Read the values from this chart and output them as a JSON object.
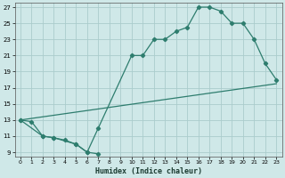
{
  "xlabel": "Humidex (Indice chaleur)",
  "bg_color": "#cfe8e8",
  "grid_color": "#aacccc",
  "line_color": "#2e7d6e",
  "xlim": [
    -0.5,
    23.5
  ],
  "ylim": [
    8.5,
    27.5
  ],
  "xticks": [
    0,
    1,
    2,
    3,
    4,
    5,
    6,
    7,
    8,
    9,
    10,
    11,
    12,
    13,
    14,
    15,
    16,
    17,
    18,
    19,
    20,
    21,
    22,
    23
  ],
  "yticks": [
    9,
    11,
    13,
    15,
    17,
    19,
    21,
    23,
    25,
    27
  ],
  "series": [
    {
      "x": [
        0,
        2,
        3,
        5,
        6,
        7,
        10,
        11,
        12,
        13,
        14,
        15,
        16,
        17,
        18,
        19,
        20,
        21,
        22,
        23
      ],
      "y": [
        13,
        11,
        10.8,
        10,
        9,
        12,
        21,
        21,
        23,
        23,
        24,
        24.5,
        27,
        27,
        26.5,
        25,
        25,
        23,
        20,
        18
      ]
    },
    {
      "x": [
        0,
        1,
        2,
        3,
        4,
        5,
        6,
        7
      ],
      "y": [
        13,
        12.8,
        11,
        10.8,
        10.5,
        10,
        9,
        8.8
      ]
    },
    {
      "x": [
        0,
        23
      ],
      "y": [
        13,
        17.5
      ]
    }
  ]
}
